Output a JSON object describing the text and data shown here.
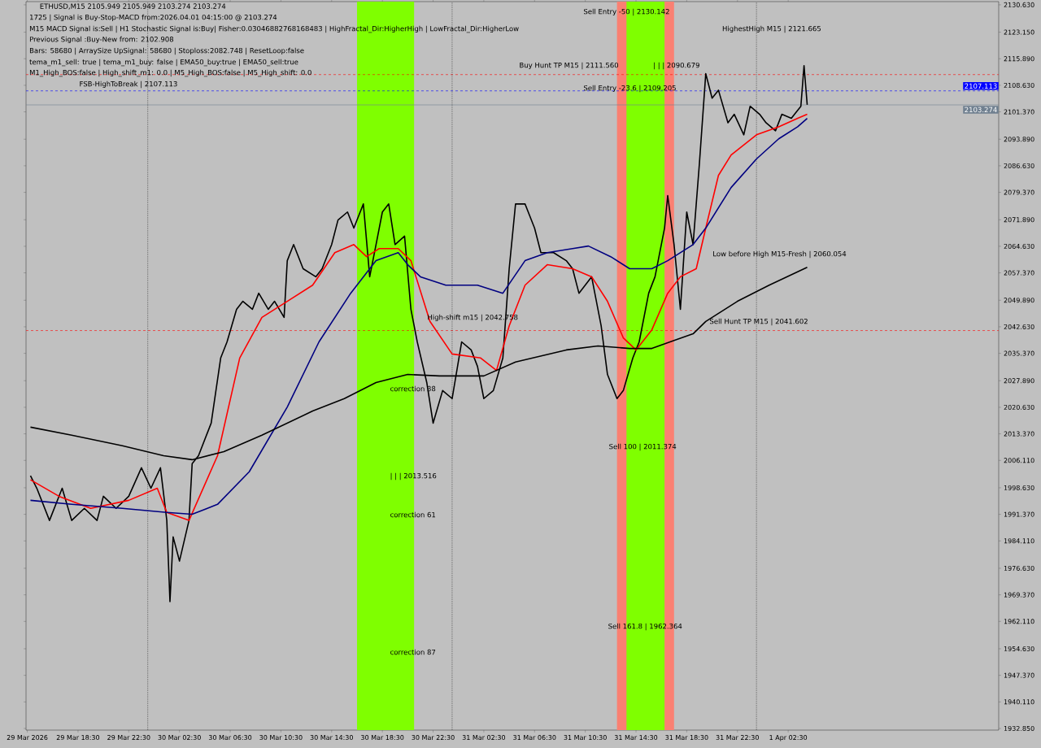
{
  "chart_data": {
    "type": "line",
    "title": "ETHUSD,M15  2105.949 2105.949 2103.274 2103.274",
    "annotations": [
      "1725 | Signal is Buy-Stop-MACD from:2026.04.01 04:15:00 @ 2103.274",
      "M15 MACD Signal is:Sell | H1 Stochastic Signal is:Buy| Fisher:0.03046882768168483 | HighFractal_Dir:HigherHigh | LowFractal_Dir:HigherLow",
      "Previous Signal :Buy-New from: 2102.908",
      "Bars: 58680 | ArraySize UpSignal: 58680 | Stoploss:2082.748 | ResetLoop:false",
      "tema_m1_sell: true | tema_m1_buy: false | EMA50_buy:true | EMA50_sell:true",
      "M1_High_BOS:false | High_shift_m1: 0.0 | M5_High_BOS:false | M5_High_shift: 0.0",
      "FSB-HighToBreak | 2107.113",
      "Buy Hunt TP M15 | 2111.560",
      "| | | 2090.679",
      "Sell Entry -23.6 | 2109.205",
      "Sell Entry -50 | 2130.142",
      "HighestHigh   M15 | 2121.665",
      "Low before High   M15-Fresh | 2060.054",
      "High-shift m15 | 2042.758",
      "Sell Hunt TP M15 | 2041.602",
      "correction 38",
      "| | | 2013.516",
      "correction 61",
      "correction 87",
      "Sell 100 | 2011.374",
      "Sell 161.8 | 1962.364"
    ],
    "series": [
      {
        "color": "#000000",
        "x": [
          "2026-03-29T14:45",
          "2026-03-29T15:15",
          "2026-03-29T16:15",
          "2026-03-29T17:15",
          "2026-03-29T18:00",
          "2026-03-29T19:00",
          "2026-03-29T20:00",
          "2026-03-29T20:30",
          "2026-03-29T21:30",
          "2026-03-29T22:30",
          "2026-03-29T23:30",
          "2026-03-30T00:15",
          "2026-03-30T01:00",
          "2026-03-30T01:30",
          "2026-03-30T01:45",
          "2026-03-30T02:00",
          "2026-03-30T02:30",
          "2026-03-30T03:15",
          "2026-03-30T03:30",
          "2026-03-30T04:00",
          "2026-03-30T05:00",
          "2026-03-30T05:45",
          "2026-03-30T06:15",
          "2026-03-30T07:00",
          "2026-03-30T07:30",
          "2026-03-30T08:15",
          "2026-03-30T08:45",
          "2026-03-30T09:30",
          "2026-03-30T10:00",
          "2026-03-30T10:45",
          "2026-03-30T11:00",
          "2026-03-30T11:30",
          "2026-03-30T12:15",
          "2026-03-30T13:15",
          "2026-03-30T13:45",
          "2026-03-30T14:30",
          "2026-03-30T15:00",
          "2026-03-30T15:45",
          "2026-03-30T16:15",
          "2026-03-30T17:00",
          "2026-03-30T17:30",
          "2026-03-30T18:00",
          "2026-03-30T18:30",
          "2026-03-30T19:00",
          "2026-03-30T19:30",
          "2026-03-30T20:15",
          "2026-03-30T20:45",
          "2026-03-30T21:15",
          "2026-03-30T22:00",
          "2026-03-30T22:30",
          "2026-03-30T23:15",
          "2026-03-31T00:00",
          "2026-03-31T00:45",
          "2026-03-31T01:30",
          "2026-03-31T02:00",
          "2026-03-31T02:30",
          "2026-03-31T03:15",
          "2026-03-31T04:00",
          "2026-03-31T04:30",
          "2026-03-31T05:00",
          "2026-03-31T05:45",
          "2026-03-31T06:30",
          "2026-03-31T07:00",
          "2026-03-31T08:00",
          "2026-03-31T09:00",
          "2026-03-31T09:30",
          "2026-03-31T10:00",
          "2026-03-31T11:00",
          "2026-03-31T11:45",
          "2026-03-31T12:15",
          "2026-03-31T13:00",
          "2026-03-31T13:30",
          "2026-03-31T14:15",
          "2026-03-31T14:45",
          "2026-03-31T15:30",
          "2026-03-31T16:00",
          "2026-03-31T16:45",
          "2026-03-31T17:00",
          "2026-03-31T17:30",
          "2026-03-31T18:00",
          "2026-03-31T18:30",
          "2026-03-31T19:00",
          "2026-03-31T19:30",
          "2026-03-31T20:00",
          "2026-03-31T20:30",
          "2026-03-31T21:00",
          "2026-03-31T21:45",
          "2026-03-31T22:15",
          "2026-03-31T23:00",
          "2026-03-31T23:30",
          "2026-04-01T00:15",
          "2026-04-01T00:45",
          "2026-04-01T01:30",
          "2026-04-01T02:00",
          "2026-04-01T02:45",
          "2026-04-01T03:00",
          "2026-04-01T03:30",
          "2026-04-01T03:45",
          "2026-04-01T04:00"
        ],
        "values": [
          2001.9,
          1998.5,
          1989.7,
          1998.5,
          1989.7,
          1993.0,
          1989.7,
          1996.3,
          1993.0,
          1996.3,
          2004.1,
          1998.5,
          2004.1,
          1989.7,
          1967.5,
          1985.2,
          1978.6,
          1989.7,
          2005.2,
          2007.4,
          2016.3,
          2034.1,
          2038.5,
          2047.4,
          2049.6,
          2047.4,
          2051.8,
          2047.4,
          2049.6,
          2045.2,
          2060.7,
          2065.1,
          2058.5,
          2056.3,
          2058.5,
          2065.1,
          2071.8,
          2074.0,
          2069.6,
          2076.2,
          2056.3,
          2065.1,
          2074.0,
          2076.2,
          2065.1,
          2067.4,
          2047.4,
          2038.5,
          2027.4,
          2016.3,
          2025.2,
          2023.0,
          2038.5,
          2036.3,
          2031.8,
          2023.0,
          2025.2,
          2034.1,
          2058.5,
          2076.2,
          2076.2,
          2069.6,
          2062.9,
          2062.9,
          2060.7,
          2058.5,
          2051.8,
          2056.3,
          2042.9,
          2029.6,
          2023.0,
          2025.2,
          2034.1,
          2038.5,
          2051.8,
          2056.3,
          2069.6,
          2078.5,
          2065.1,
          2047.4,
          2074.0,
          2065.1,
          2087.3,
          2111.8,
          2105.1,
          2107.3,
          2098.4,
          2100.7,
          2095.1,
          2102.9,
          2100.7,
          2098.4,
          2096.2,
          2100.7,
          2099.6,
          2100.7,
          2102.9,
          2114.0,
          2103.3
        ]
      },
      {
        "color": "#ff0000",
        "x": [
          "2026-03-29T14:45",
          "2026-03-29T17:00",
          "2026-03-29T19:30",
          "2026-03-29T22:30",
          "2026-03-30T00:45",
          "2026-03-30T01:30",
          "2026-03-30T03:15",
          "2026-03-30T05:30",
          "2026-03-30T07:15",
          "2026-03-30T09:00",
          "2026-03-30T11:00",
          "2026-03-30T13:00",
          "2026-03-30T14:45",
          "2026-03-30T16:15",
          "2026-03-30T17:15",
          "2026-03-30T18:15",
          "2026-03-30T19:45",
          "2026-03-30T20:45",
          "2026-03-30T22:15",
          "2026-03-31T00:00",
          "2026-03-31T02:15",
          "2026-03-31T03:30",
          "2026-03-31T04:30",
          "2026-03-31T05:45",
          "2026-03-31T07:30",
          "2026-03-31T09:30",
          "2026-03-31T11:00",
          "2026-03-31T12:15",
          "2026-03-31T13:30",
          "2026-03-31T14:30",
          "2026-03-31T15:45",
          "2026-03-31T17:00",
          "2026-03-31T18:00",
          "2026-03-31T19:15",
          "2026-03-31T20:00",
          "2026-03-31T21:00",
          "2026-03-31T22:00",
          "2026-04-01T00:00",
          "2026-04-01T01:45",
          "2026-04-01T03:15",
          "2026-04-01T04:00"
        ],
        "values": [
          2000.8,
          1996.3,
          1993.0,
          1995.2,
          1998.5,
          1991.9,
          1989.7,
          2007.4,
          2034.1,
          2045.2,
          2049.6,
          2054.0,
          2062.9,
          2065.1,
          2061.8,
          2064.0,
          2064.0,
          2060.7,
          2044.1,
          2035.2,
          2034.1,
          2030.7,
          2042.9,
          2054.0,
          2059.6,
          2058.5,
          2056.3,
          2049.6,
          2039.6,
          2036.3,
          2041.8,
          2051.8,
          2056.3,
          2058.5,
          2069.6,
          2084.0,
          2089.6,
          2095.1,
          2097.3,
          2099.6,
          2100.7
        ]
      },
      {
        "color": "#000080",
        "x": [
          "2026-03-29T14:45",
          "2026-03-29T18:00",
          "2026-03-29T22:00",
          "2026-03-30T01:30",
          "2026-03-30T03:30",
          "2026-03-30T05:30",
          "2026-03-30T08:00",
          "2026-03-30T11:00",
          "2026-03-30T13:30",
          "2026-03-30T16:00",
          "2026-03-30T18:00",
          "2026-03-30T19:45",
          "2026-03-30T20:30",
          "2026-03-30T21:30",
          "2026-03-30T23:30",
          "2026-03-31T02:00",
          "2026-03-31T04:00",
          "2026-03-31T05:45",
          "2026-03-31T07:30",
          "2026-03-31T09:30",
          "2026-03-31T10:45",
          "2026-03-31T12:30",
          "2026-03-31T14:00",
          "2026-03-31T15:45",
          "2026-03-31T17:00",
          "2026-03-31T19:00",
          "2026-03-31T20:00",
          "2026-03-31T22:00",
          "2026-04-01T00:00",
          "2026-04-01T01:45",
          "2026-04-01T03:15",
          "2026-04-01T04:00"
        ],
        "values": [
          1995.2,
          1994.1,
          1993.0,
          1991.9,
          1991.4,
          1994.1,
          2003.0,
          2020.7,
          2038.5,
          2051.8,
          2060.7,
          2062.9,
          2059.6,
          2056.3,
          2054.0,
          2054.0,
          2051.8,
          2060.7,
          2062.9,
          2064.0,
          2064.7,
          2061.8,
          2058.5,
          2058.5,
          2060.7,
          2065.1,
          2069.6,
          2080.7,
          2088.5,
          2094.0,
          2097.3,
          2099.6
        ]
      },
      {
        "color": "#000000",
        "x": [
          "2026-03-29T14:45",
          "2026-03-29T18:00",
          "2026-03-29T22:00",
          "2026-03-30T01:15",
          "2026-03-30T03:30",
          "2026-03-30T06:00",
          "2026-03-30T09:00",
          "2026-03-30T13:00",
          "2026-03-30T15:30",
          "2026-03-30T18:00",
          "2026-03-30T20:30",
          "2026-03-30T23:00",
          "2026-03-31T02:30",
          "2026-03-31T05:00",
          "2026-03-31T09:00",
          "2026-03-31T11:30",
          "2026-03-31T14:00",
          "2026-03-31T15:45",
          "2026-03-31T17:30",
          "2026-03-31T19:00",
          "2026-03-31T20:00",
          "2026-03-31T22:30",
          "2026-04-01T01:00",
          "2026-04-01T04:00"
        ],
        "values": [
          2015.2,
          2013.0,
          2010.1,
          2007.4,
          2006.3,
          2008.5,
          2013.0,
          2019.6,
          2023.0,
          2027.4,
          2029.6,
          2029.2,
          2029.2,
          2033.0,
          2036.3,
          2037.4,
          2036.7,
          2036.7,
          2038.9,
          2040.7,
          2044.1,
          2049.6,
          2054.0,
          2058.9
        ]
      }
    ],
    "bands": [
      {
        "axis": "x",
        "from": "2026-03-30T16:30",
        "to": "2026-03-30T21:00",
        "color": "#7fff00"
      },
      {
        "axis": "x",
        "from": "2026-03-31T13:00",
        "to": "2026-03-31T17:30",
        "color": "#fa8072"
      },
      {
        "axis": "x",
        "from": "2026-03-31T13:45",
        "to": "2026-03-31T16:45",
        "color": "#7fff00"
      }
    ],
    "ref_lines": [
      {
        "axis": "y",
        "value": 2107.113,
        "label": "2107.113",
        "color": "#0000ff",
        "line_style": "dashed"
      },
      {
        "axis": "y",
        "value": 2103.274,
        "label": "2103.274",
        "color": "#708090",
        "line_style": "solid"
      },
      {
        "axis": "y",
        "value": 2111.56,
        "color": "#ff0000",
        "line_style": "dashed"
      },
      {
        "axis": "y",
        "value": 2041.602,
        "color": "#ff0000",
        "line_style": "dashed"
      },
      {
        "axis": "x",
        "value": "2026-03-30T00:00",
        "color": "#000000",
        "line_style": "dotted"
      },
      {
        "axis": "x",
        "value": "2026-03-31T00:00",
        "color": "#000000",
        "line_style": "dotted"
      },
      {
        "axis": "x",
        "value": "2026-04-01T00:00",
        "color": "#000000",
        "line_style": "dotted"
      }
    ],
    "xlim": [
      "2026-03-29T14:24",
      "2026-04-01T19:06"
    ],
    "xticks": [
      {
        "value": "2026-03-29T14:30",
        "label": "29 Mar 2026"
      },
      {
        "value": "2026-03-29T18:30",
        "label": "29 Mar 18:30"
      },
      {
        "value": "2026-03-29T22:30",
        "label": "29 Mar 22:30"
      },
      {
        "value": "2026-03-30T02:30",
        "label": "30 Mar 02:30"
      },
      {
        "value": "2026-03-30T06:30",
        "label": "30 Mar 06:30"
      },
      {
        "value": "2026-03-30T10:30",
        "label": "30 Mar 10:30"
      },
      {
        "value": "2026-03-30T14:30",
        "label": "30 Mar 14:30"
      },
      {
        "value": "2026-03-30T18:30",
        "label": "30 Mar 18:30"
      },
      {
        "value": "2026-03-30T22:30",
        "label": "30 Mar 22:30"
      },
      {
        "value": "2026-03-31T02:30",
        "label": "31 Mar 02:30"
      },
      {
        "value": "2026-03-31T06:30",
        "label": "31 Mar 06:30"
      },
      {
        "value": "2026-03-31T10:30",
        "label": "31 Mar 10:30"
      },
      {
        "value": "2026-03-31T14:30",
        "label": "31 Mar 14:30"
      },
      {
        "value": "2026-03-31T18:30",
        "label": "31 Mar 18:30"
      },
      {
        "value": "2026-03-31T22:30",
        "label": "31 Mar 22:30"
      },
      {
        "value": "2026-04-01T02:30",
        "label": "1 Apr 02:30"
      }
    ],
    "ylim": [
      1932.4,
      2131.5
    ],
    "yticks": [
      {
        "value": 2130.63,
        "label": "2130.630"
      },
      {
        "value": 2123.15,
        "label": "2123.150"
      },
      {
        "value": 2115.89,
        "label": "2115.890"
      },
      {
        "value": 2108.63,
        "label": "2108.630"
      },
      {
        "value": 2101.37,
        "label": "2101.370"
      },
      {
        "value": 2093.89,
        "label": "2093.890"
      },
      {
        "value": 2086.63,
        "label": "2086.630"
      },
      {
        "value": 2079.37,
        "label": "2079.370"
      },
      {
        "value": 2071.89,
        "label": "2071.890"
      },
      {
        "value": 2064.63,
        "label": "2064.630"
      },
      {
        "value": 2057.37,
        "label": "2057.370"
      },
      {
        "value": 2049.89,
        "label": "2049.890"
      },
      {
        "value": 2042.63,
        "label": "2042.630"
      },
      {
        "value": 2035.37,
        "label": "2035.370"
      },
      {
        "value": 2027.89,
        "label": "2027.890"
      },
      {
        "value": 2020.63,
        "label": "2020.630"
      },
      {
        "value": 2013.37,
        "label": "2013.370"
      },
      {
        "value": 2006.11,
        "label": "2006.110"
      },
      {
        "value": 1998.63,
        "label": "1998.630"
      },
      {
        "value": 1991.37,
        "label": "1991.370"
      },
      {
        "value": 1984.11,
        "label": "1984.110"
      },
      {
        "value": 1976.63,
        "label": "1976.630"
      },
      {
        "value": 1969.37,
        "label": "1969.370"
      },
      {
        "value": 1962.11,
        "label": "1962.110"
      },
      {
        "value": 1954.63,
        "label": "1954.630"
      },
      {
        "value": 1947.37,
        "label": "1947.370"
      },
      {
        "value": 1940.11,
        "label": "1940.110"
      },
      {
        "value": 1932.85,
        "label": "1932.850"
      }
    ]
  }
}
